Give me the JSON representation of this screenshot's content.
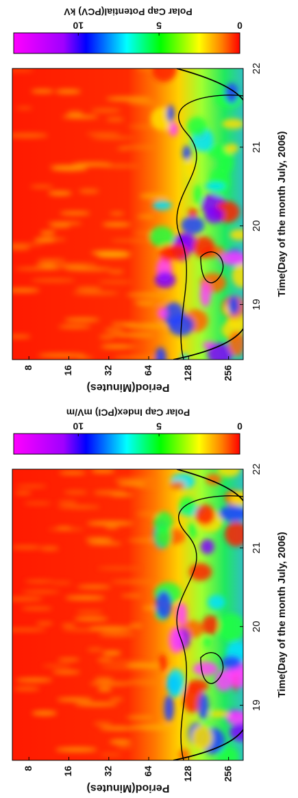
{
  "chart_data": [
    {
      "type": "heatmap",
      "colorbar_label": "Polar Cap Potential(PCV) kV",
      "xlabel": "Time(Day of the month July, 2006)",
      "ylabel": "Period(Minutes)",
      "xlim": [
        18.3,
        22
      ],
      "xticks": [
        19,
        20,
        21,
        22
      ],
      "ylim": [
        6,
        330
      ],
      "yticks": [
        8,
        16,
        32,
        64,
        128,
        256
      ],
      "log_y": true,
      "clim": [
        14,
        0
      ],
      "cticks": [
        10,
        5,
        0
      ]
    },
    {
      "type": "heatmap",
      "colorbar_label": "Polar Cap Index(PCI) mV/m",
      "xlabel": "Time(Day of the month July, 2006)",
      "ylabel": "Period(Minutes)",
      "xlim": [
        18.3,
        22
      ],
      "xticks": [
        19,
        20,
        21,
        22
      ],
      "ylim": [
        6,
        330
      ],
      "yticks": [
        8,
        16,
        32,
        64,
        128,
        256
      ],
      "log_y": true,
      "clim": [
        14,
        0
      ],
      "cticks": [
        10,
        5,
        0
      ]
    }
  ]
}
